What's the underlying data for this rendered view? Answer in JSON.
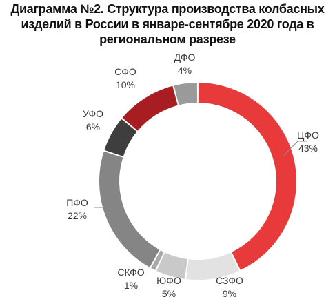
{
  "title_lines": [
    "Диаграмма №2. Структура производства колбасных",
    "изделий в России в январе-сентябре 2020 года в",
    "региональном разрезе"
  ],
  "chart_data": {
    "type": "pie",
    "donut": true,
    "categories": [
      "ЦФО",
      "СЗФО",
      "ЮФО",
      "СКФО",
      "ПФО",
      "УФО",
      "СФО",
      "ДФО"
    ],
    "values": [
      43,
      9,
      5,
      1,
      22,
      6,
      10,
      4
    ],
    "value_labels": [
      "43%",
      "9%",
      "5%",
      "1%",
      "22%",
      "6%",
      "10%",
      "4%"
    ],
    "colors": [
      "#e8393b",
      "#e2e2e2",
      "#c9c9c9",
      "#a8a8a8",
      "#858585",
      "#3e3e3e",
      "#a71d22",
      "#9a9a9a"
    ],
    "title": "Диаграмма №2. Структура производства колбасных изделий в России в январе-сентябре 2020 года в региональном разрезе",
    "legend": "none"
  }
}
